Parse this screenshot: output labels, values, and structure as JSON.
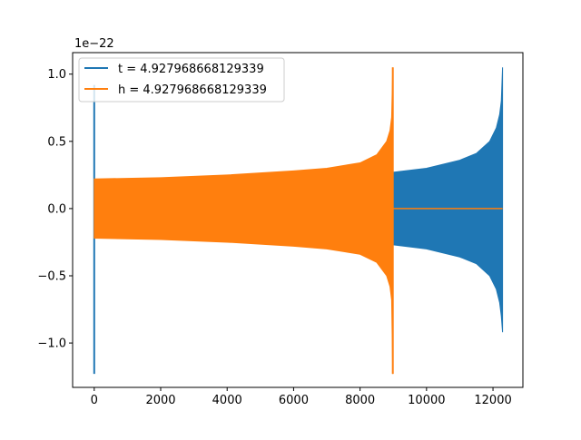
{
  "chart_data": {
    "type": "line",
    "title": "",
    "xlabel": "",
    "ylabel": "",
    "offset_label": "1e−22",
    "xlim": [
      -650,
      12900
    ],
    "ylim": [
      -1.33,
      1.16
    ],
    "x_ticks": [
      0,
      2000,
      4000,
      6000,
      8000,
      10000,
      12000
    ],
    "x_tick_labels": [
      "0",
      "2000",
      "4000",
      "6000",
      "8000",
      "10000",
      "12000"
    ],
    "y_ticks": [
      1.0,
      0.5,
      0.0,
      -0.5,
      -1.0
    ],
    "y_tick_labels": [
      "1.0",
      "0.5",
      "0.0",
      "−0.5",
      "−1.0"
    ],
    "grid": false,
    "legend_position": "top-left",
    "series": [
      {
        "name": "t = 4.927968668129339",
        "color": "#1f77b4",
        "x_start": 0,
        "x_end": 12288,
        "spike_x": 0,
        "spike_range": [
          -1.23,
          0.92
        ],
        "envelope": {
          "x": [
            0,
            2000,
            4000,
            6000,
            8000,
            9000,
            10000,
            11000,
            11500,
            11900,
            12100,
            12200,
            12250,
            12288
          ],
          "upper": [
            0.21,
            0.22,
            0.22,
            0.22,
            0.23,
            0.27,
            0.3,
            0.36,
            0.41,
            0.5,
            0.6,
            0.7,
            0.8,
            1.05
          ],
          "lower": [
            -0.21,
            -0.22,
            -0.22,
            -0.22,
            -0.23,
            -0.27,
            -0.3,
            -0.36,
            -0.41,
            -0.5,
            -0.6,
            -0.7,
            -0.8,
            -0.92
          ]
        }
      },
      {
        "name": "h = 4.927968668129339",
        "color": "#ff7f0e",
        "x_start": 0,
        "x_end": 12288,
        "spike_x": 8985,
        "spike_range": [
          -1.23,
          1.05
        ],
        "flat_from": 9000,
        "envelope": {
          "x": [
            0,
            2000,
            4000,
            6000,
            7000,
            8000,
            8500,
            8800,
            8900,
            8950,
            8985
          ],
          "upper": [
            0.22,
            0.23,
            0.25,
            0.28,
            0.3,
            0.34,
            0.4,
            0.5,
            0.58,
            0.68,
            1.05
          ],
          "lower": [
            -0.22,
            -0.23,
            -0.25,
            -0.28,
            -0.3,
            -0.34,
            -0.4,
            -0.5,
            -0.58,
            -0.68,
            -1.23
          ]
        }
      }
    ]
  }
}
